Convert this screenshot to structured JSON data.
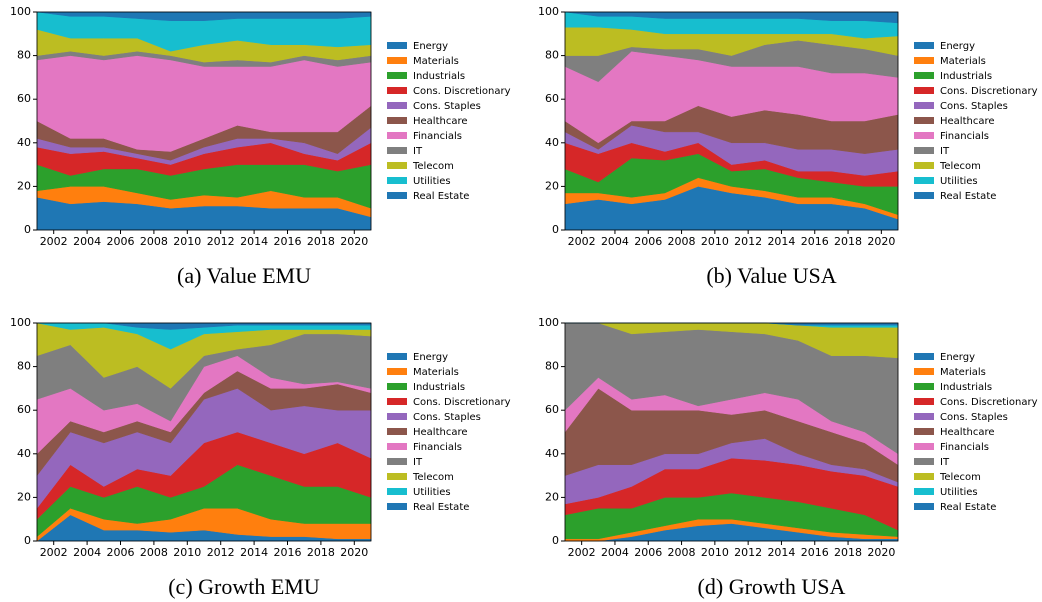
{
  "chart_data": [
    {
      "type": "stacked-area",
      "caption": "(a) Value EMU",
      "x": [
        2001,
        2003,
        2005,
        2007,
        2009,
        2011,
        2013,
        2015,
        2017,
        2019,
        2021
      ],
      "xlim": [
        2001,
        2021
      ],
      "xticks": [
        2002,
        2004,
        2006,
        2008,
        2010,
        2012,
        2014,
        2016,
        2018,
        2020
      ],
      "ylim": [
        0,
        100
      ],
      "yticks": [
        0,
        20,
        40,
        60,
        80,
        100
      ],
      "series": [
        {
          "name": "Energy",
          "color": "#1f77b4",
          "values": [
            15,
            12,
            13,
            12,
            10,
            11,
            11,
            10,
            10,
            10,
            6
          ]
        },
        {
          "name": "Materials",
          "color": "#ff7f0e",
          "values": [
            3,
            8,
            7,
            5,
            4,
            5,
            4,
            8,
            5,
            5,
            4
          ]
        },
        {
          "name": "Industrials",
          "color": "#2ca02c",
          "values": [
            12,
            5,
            8,
            11,
            11,
            12,
            15,
            12,
            15,
            12,
            20
          ]
        },
        {
          "name": "Cons. Discretionary",
          "color": "#d62728",
          "values": [
            8,
            10,
            8,
            5,
            5,
            7,
            8,
            10,
            5,
            5,
            10
          ]
        },
        {
          "name": "Cons. Staples",
          "color": "#9467bd",
          "values": [
            4,
            3,
            2,
            2,
            2,
            3,
            4,
            2,
            5,
            3,
            7
          ]
        },
        {
          "name": "Healthcare",
          "color": "#8c564b",
          "values": [
            8,
            4,
            4,
            2,
            4,
            4,
            6,
            3,
            5,
            10,
            10
          ]
        },
        {
          "name": "Financials",
          "color": "#e377c2",
          "values": [
            28,
            38,
            36,
            43,
            42,
            33,
            27,
            30,
            33,
            30,
            20
          ]
        },
        {
          "name": "IT",
          "color": "#7f7f7f",
          "values": [
            2,
            2,
            2,
            2,
            2,
            2,
            3,
            2,
            2,
            3,
            3
          ]
        },
        {
          "name": "Telecom",
          "color": "#bcbd22",
          "values": [
            12,
            6,
            8,
            6,
            2,
            8,
            9,
            8,
            5,
            6,
            5
          ]
        },
        {
          "name": "Utilities",
          "color": "#17becf",
          "values": [
            8,
            10,
            10,
            9,
            14,
            11,
            10,
            12,
            12,
            13,
            13
          ]
        },
        {
          "name": "Real Estate",
          "color": "#1f77b4",
          "values": [
            0,
            2,
            2,
            3,
            4,
            4,
            3,
            3,
            3,
            3,
            2
          ]
        }
      ]
    },
    {
      "type": "stacked-area",
      "caption": "(b) Value USA",
      "x": [
        2001,
        2003,
        2005,
        2007,
        2009,
        2011,
        2013,
        2015,
        2017,
        2019,
        2021
      ],
      "xlim": [
        2001,
        2021
      ],
      "xticks": [
        2002,
        2004,
        2006,
        2008,
        2010,
        2012,
        2014,
        2016,
        2018,
        2020
      ],
      "ylim": [
        0,
        100
      ],
      "yticks": [
        0,
        20,
        40,
        60,
        80,
        100
      ],
      "series": [
        {
          "name": "Energy",
          "color": "#1f77b4",
          "values": [
            12,
            14,
            12,
            14,
            20,
            17,
            15,
            12,
            12,
            10,
            5
          ]
        },
        {
          "name": "Materials",
          "color": "#ff7f0e",
          "values": [
            5,
            3,
            3,
            3,
            4,
            3,
            3,
            3,
            3,
            2,
            2
          ]
        },
        {
          "name": "Industrials",
          "color": "#2ca02c",
          "values": [
            11,
            5,
            18,
            15,
            11,
            7,
            10,
            9,
            7,
            8,
            13
          ]
        },
        {
          "name": "Cons. Discretionary",
          "color": "#d62728",
          "values": [
            12,
            13,
            7,
            4,
            5,
            3,
            4,
            3,
            5,
            5,
            7
          ]
        },
        {
          "name": "Cons. Staples",
          "color": "#9467bd",
          "values": [
            5,
            2,
            8,
            9,
            5,
            10,
            8,
            10,
            10,
            10,
            10
          ]
        },
        {
          "name": "Healthcare",
          "color": "#8c564b",
          "values": [
            5,
            3,
            2,
            5,
            12,
            12,
            15,
            16,
            13,
            15,
            16
          ]
        },
        {
          "name": "Financials",
          "color": "#e377c2",
          "values": [
            25,
            28,
            32,
            30,
            21,
            23,
            20,
            22,
            22,
            22,
            17
          ]
        },
        {
          "name": "IT",
          "color": "#7f7f7f",
          "values": [
            5,
            12,
            2,
            3,
            5,
            5,
            10,
            12,
            13,
            11,
            10
          ]
        },
        {
          "name": "Telecom",
          "color": "#bcbd22",
          "values": [
            13,
            13,
            8,
            7,
            7,
            10,
            5,
            3,
            5,
            5,
            9
          ]
        },
        {
          "name": "Utilities",
          "color": "#17becf",
          "values": [
            7,
            5,
            6,
            7,
            7,
            7,
            7,
            7,
            6,
            8,
            6
          ]
        },
        {
          "name": "Real Estate",
          "color": "#1f77b4",
          "values": [
            0,
            2,
            2,
            3,
            3,
            3,
            3,
            3,
            4,
            4,
            5
          ]
        }
      ]
    },
    {
      "type": "stacked-area",
      "caption": "(c) Growth EMU",
      "x": [
        2001,
        2003,
        2005,
        2007,
        2009,
        2011,
        2013,
        2015,
        2017,
        2019,
        2021
      ],
      "xlim": [
        2001,
        2021
      ],
      "xticks": [
        2002,
        2004,
        2006,
        2008,
        2010,
        2012,
        2014,
        2016,
        2018,
        2020
      ],
      "ylim": [
        0,
        100
      ],
      "yticks": [
        0,
        20,
        40,
        60,
        80,
        100
      ],
      "series": [
        {
          "name": "Energy",
          "color": "#1f77b4",
          "values": [
            0,
            12,
            5,
            5,
            4,
            5,
            3,
            2,
            2,
            1,
            1
          ]
        },
        {
          "name": "Materials",
          "color": "#ff7f0e",
          "values": [
            2,
            3,
            5,
            3,
            6,
            10,
            12,
            8,
            6,
            7,
            7
          ]
        },
        {
          "name": "Industrials",
          "color": "#2ca02c",
          "values": [
            8,
            10,
            10,
            17,
            10,
            10,
            20,
            20,
            17,
            17,
            12
          ]
        },
        {
          "name": "Cons. Discretionary",
          "color": "#d62728",
          "values": [
            5,
            10,
            5,
            8,
            10,
            20,
            15,
            15,
            15,
            20,
            18
          ]
        },
        {
          "name": "Cons. Staples",
          "color": "#9467bd",
          "values": [
            15,
            15,
            20,
            17,
            15,
            20,
            20,
            15,
            22,
            15,
            22
          ]
        },
        {
          "name": "Healthcare",
          "color": "#8c564b",
          "values": [
            10,
            5,
            5,
            5,
            5,
            3,
            8,
            10,
            8,
            12,
            8
          ]
        },
        {
          "name": "Financials",
          "color": "#e377c2",
          "values": [
            25,
            15,
            10,
            8,
            5,
            12,
            7,
            5,
            2,
            1,
            2
          ]
        },
        {
          "name": "IT",
          "color": "#7f7f7f",
          "values": [
            20,
            20,
            15,
            17,
            15,
            5,
            3,
            15,
            23,
            22,
            24
          ]
        },
        {
          "name": "Telecom",
          "color": "#bcbd22",
          "values": [
            15,
            7,
            23,
            15,
            18,
            10,
            8,
            7,
            2,
            2,
            3
          ]
        },
        {
          "name": "Utilities",
          "color": "#17becf",
          "values": [
            0,
            3,
            2,
            3,
            9,
            3,
            3,
            2,
            2,
            2,
            2
          ]
        },
        {
          "name": "Real Estate",
          "color": "#1f77b4",
          "values": [
            0,
            0,
            0,
            2,
            3,
            2,
            1,
            1,
            1,
            1,
            1
          ]
        }
      ]
    },
    {
      "type": "stacked-area",
      "caption": "(d) Growth USA",
      "x": [
        2001,
        2003,
        2005,
        2007,
        2009,
        2011,
        2013,
        2015,
        2017,
        2019,
        2021
      ],
      "xlim": [
        2001,
        2021
      ],
      "xticks": [
        2002,
        2004,
        2006,
        2008,
        2010,
        2012,
        2014,
        2016,
        2018,
        2020
      ],
      "ylim": [
        0,
        100
      ],
      "yticks": [
        0,
        20,
        40,
        60,
        80,
        100
      ],
      "series": [
        {
          "name": "Energy",
          "color": "#1f77b4",
          "values": [
            0,
            0,
            2,
            5,
            7,
            8,
            6,
            4,
            2,
            1,
            1
          ]
        },
        {
          "name": "Materials",
          "color": "#ff7f0e",
          "values": [
            1,
            1,
            2,
            2,
            3,
            2,
            2,
            2,
            2,
            2,
            1
          ]
        },
        {
          "name": "Industrials",
          "color": "#2ca02c",
          "values": [
            11,
            14,
            11,
            13,
            10,
            12,
            12,
            12,
            11,
            9,
            3
          ]
        },
        {
          "name": "Cons. Discretionary",
          "color": "#d62728",
          "values": [
            5,
            5,
            10,
            13,
            13,
            16,
            17,
            17,
            17,
            18,
            20
          ]
        },
        {
          "name": "Cons. Staples",
          "color": "#9467bd",
          "values": [
            13,
            15,
            10,
            7,
            7,
            7,
            10,
            5,
            3,
            3,
            2
          ]
        },
        {
          "name": "Healthcare",
          "color": "#8c564b",
          "values": [
            20,
            35,
            25,
            20,
            20,
            13,
            13,
            15,
            15,
            12,
            8
          ]
        },
        {
          "name": "Financials",
          "color": "#e377c2",
          "values": [
            10,
            5,
            5,
            7,
            2,
            7,
            8,
            10,
            5,
            5,
            5
          ]
        },
        {
          "name": "IT",
          "color": "#7f7f7f",
          "values": [
            40,
            25,
            30,
            29,
            35,
            31,
            27,
            27,
            30,
            35,
            44
          ]
        },
        {
          "name": "Telecom",
          "color": "#bcbd22",
          "values": [
            0,
            0,
            5,
            4,
            3,
            4,
            5,
            7,
            13,
            13,
            14
          ]
        },
        {
          "name": "Utilities",
          "color": "#17becf",
          "values": [
            0,
            0,
            0,
            0,
            0,
            0,
            0,
            0,
            1,
            1,
            1
          ]
        },
        {
          "name": "Real Estate",
          "color": "#1f77b4",
          "values": [
            0,
            0,
            0,
            0,
            0,
            0,
            0,
            1,
            1,
            1,
            1
          ]
        }
      ]
    }
  ]
}
